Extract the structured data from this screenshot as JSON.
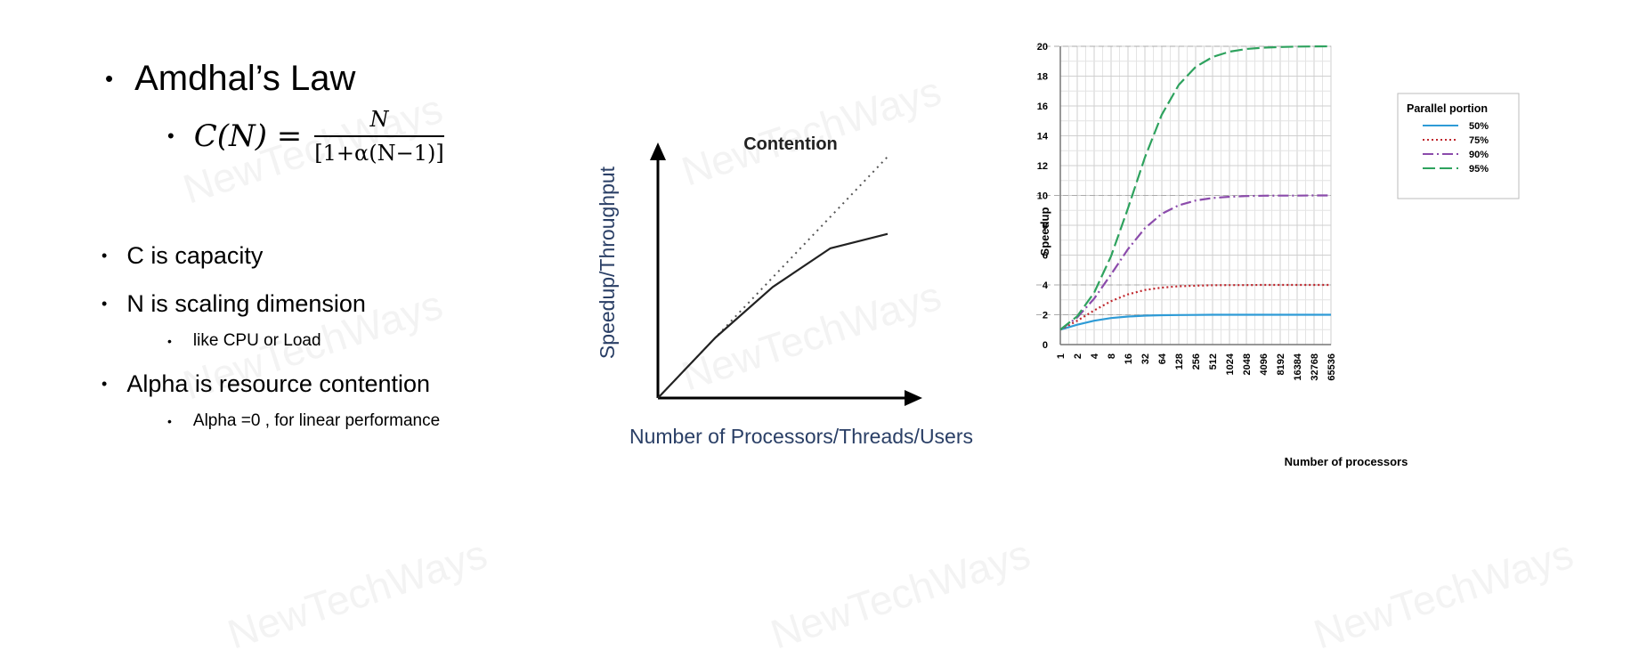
{
  "slide": {
    "title": "Amdhal’s Law",
    "formula": {
      "lhs": "C(N) =",
      "numerator": "N",
      "denominator": "[1+α(N−1)]"
    },
    "bullets": [
      {
        "text": "C is capacity",
        "sub": []
      },
      {
        "text": "N is scaling dimension",
        "sub": [
          "like CPU or Load"
        ]
      },
      {
        "text": "Alpha is resource contention",
        "sub": [
          "Alpha =0 , for linear performance"
        ]
      }
    ],
    "watermark": "NewTechWays"
  },
  "chart_data": [
    {
      "type": "line",
      "title": "Contention",
      "xlabel": "Number of Processors/Threads/Users",
      "ylabel": "Speedup/Throughput",
      "series": [
        {
          "style": "dotted",
          "x": [
            0,
            1
          ],
          "y": [
            0,
            1
          ]
        },
        {
          "style": "solid",
          "x": [
            0,
            0.25,
            0.5,
            0.75,
            1
          ],
          "y": [
            0,
            0.25,
            0.46,
            0.62,
            0.68
          ]
        }
      ],
      "axis_ticks": false,
      "grid": false
    },
    {
      "type": "line",
      "xlabel": "Number of processors",
      "ylabel": "Speedup",
      "x_scale": "log2",
      "categories": [
        "1",
        "2",
        "4",
        "8",
        "16",
        "32",
        "64",
        "128",
        "256",
        "512",
        "1024",
        "2048",
        "4096",
        "8192",
        "16384",
        "32768",
        "65536"
      ],
      "ylim": [
        0,
        20
      ],
      "yticks": [
        0,
        2,
        4,
        6,
        8,
        10,
        12,
        14,
        16,
        18,
        20
      ],
      "grid": true,
      "legend": {
        "title": "Parallel portion",
        "placement": "top-right"
      },
      "series": [
        {
          "name": "50%",
          "color": "#2e9bd6",
          "dash": "solid",
          "values": [
            1,
            1.33,
            1.6,
            1.78,
            1.88,
            1.94,
            1.97,
            1.98,
            1.99,
            2,
            2,
            2,
            2,
            2,
            2,
            2,
            2
          ]
        },
        {
          "name": "75%",
          "color": "#c0272d",
          "dash": "dotted",
          "values": [
            1,
            1.6,
            2.29,
            2.91,
            3.37,
            3.66,
            3.82,
            3.91,
            3.95,
            3.98,
            3.99,
            3.99,
            4,
            4,
            4,
            4,
            4
          ]
        },
        {
          "name": "90%",
          "color": "#8b4bab",
          "dash": "dashdot",
          "values": [
            1,
            1.82,
            3.08,
            4.71,
            6.4,
            7.8,
            8.77,
            9.34,
            9.66,
            9.83,
            9.91,
            9.96,
            9.98,
            9.99,
            9.99,
            10,
            10
          ]
        },
        {
          "name": "95%",
          "color": "#2ea25e",
          "dash": "dashed",
          "values": [
            1,
            1.9,
            3.48,
            5.93,
            9.14,
            12.55,
            15.42,
            17.41,
            18.62,
            19.28,
            19.64,
            19.82,
            19.91,
            19.95,
            19.98,
            19.99,
            20
          ]
        }
      ]
    }
  ]
}
